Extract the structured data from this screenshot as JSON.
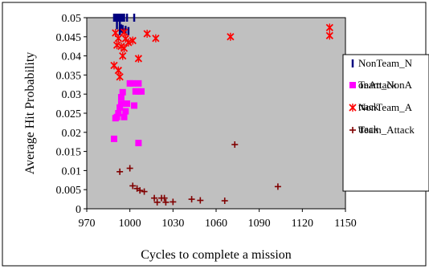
{
  "chart_data": {
    "type": "scatter",
    "xlabel": "Cycles to complete a mission",
    "ylabel": "Average Hit Probability",
    "xlim": [
      970,
      1150
    ],
    "ylim": [
      0,
      0.05
    ],
    "x_ticks": [
      "970",
      "1000",
      "1030",
      "1060",
      "1090",
      "1120",
      "1150"
    ],
    "y_ticks": [
      "0",
      "0.005",
      "0.01",
      "0.015",
      "0.02",
      "0.025",
      "0.03",
      "0.035",
      "0.04",
      "0.045",
      "0.05"
    ],
    "plot_background": "#c0c0c0",
    "grid": false,
    "legend_position": "right",
    "series": [
      {
        "name": "NonTeam_NonAttack",
        "legend_lines": [
          "NonTeam_N",
          "onAttack"
        ],
        "marker": "dash",
        "color": "#000080",
        "points": [
          [
            989,
            0.05
          ],
          [
            990,
            0.05
          ],
          [
            991,
            0.05
          ],
          [
            992,
            0.05
          ],
          [
            993,
            0.05
          ],
          [
            994,
            0.05
          ],
          [
            995,
            0.05
          ],
          [
            996,
            0.05
          ],
          [
            998,
            0.05
          ],
          [
            1003,
            0.05
          ],
          [
            991,
            0.048
          ],
          [
            993,
            0.048
          ],
          [
            994,
            0.0472
          ],
          [
            995,
            0.047
          ],
          [
            993,
            0.0465
          ],
          [
            997,
            0.0468
          ],
          [
            999,
            0.0465
          ]
        ]
      },
      {
        "name": "Team_NonAttack",
        "legend_lines": [
          "Team_NonA",
          "ttack"
        ],
        "marker": "square",
        "color": "#ff00ff",
        "points": [
          [
            989,
            0.0183
          ],
          [
            990,
            0.0237
          ],
          [
            991,
            0.024
          ],
          [
            992,
            0.025
          ],
          [
            993,
            0.0265
          ],
          [
            994,
            0.0275
          ],
          [
            994,
            0.0292
          ],
          [
            995,
            0.0305
          ],
          [
            996,
            0.024
          ],
          [
            997,
            0.0255
          ],
          [
            998,
            0.0275
          ],
          [
            1000,
            0.0328
          ],
          [
            1002,
            0.0328
          ],
          [
            1003,
            0.027
          ],
          [
            1004,
            0.0307
          ],
          [
            1006,
            0.0328
          ],
          [
            1006,
            0.0307
          ],
          [
            1008,
            0.0307
          ],
          [
            1006,
            0.0172
          ]
        ]
      },
      {
        "name": "NonTeam_Attack",
        "legend_lines": [
          "NonTeam_A",
          "ttack"
        ],
        "marker": "asterisk",
        "color": "#ff0000",
        "points": [
          [
            989,
            0.0375
          ],
          [
            990,
            0.046
          ],
          [
            991,
            0.0428
          ],
          [
            992,
            0.0446
          ],
          [
            992,
            0.0362
          ],
          [
            993,
            0.0345
          ],
          [
            994,
            0.0425
          ],
          [
            995,
            0.04
          ],
          [
            996,
            0.0462
          ],
          [
            996,
            0.042
          ],
          [
            997,
            0.0445
          ],
          [
            999,
            0.0435
          ],
          [
            1002,
            0.044
          ],
          [
            1006,
            0.0393
          ],
          [
            1012,
            0.0458
          ],
          [
            1018,
            0.0446
          ],
          [
            1070,
            0.045
          ],
          [
            1139,
            0.0474
          ],
          [
            1139,
            0.0453
          ]
        ]
      },
      {
        "name": "Team_Attack",
        "legend_lines": [
          "Team_Attack"
        ],
        "marker": "plus",
        "color": "#800000",
        "points": [
          [
            993,
            0.0097
          ],
          [
            1000,
            0.0106
          ],
          [
            1002,
            0.006
          ],
          [
            1005,
            0.0053
          ],
          [
            1007,
            0.0048
          ],
          [
            1010,
            0.0045
          ],
          [
            1017,
            0.0028
          ],
          [
            1019,
            0.0017
          ],
          [
            1022,
            0.0028
          ],
          [
            1024,
            0.0028
          ],
          [
            1025,
            0.0017
          ],
          [
            1030,
            0.0018
          ],
          [
            1043,
            0.0025
          ],
          [
            1049,
            0.0022
          ],
          [
            1066,
            0.0021
          ],
          [
            1073,
            0.0168
          ],
          [
            1103,
            0.0058
          ]
        ]
      }
    ]
  }
}
